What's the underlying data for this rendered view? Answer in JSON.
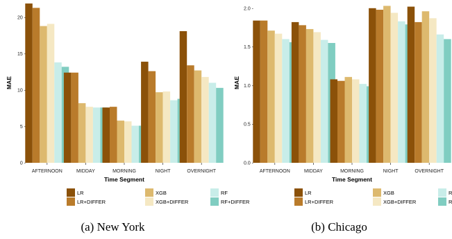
{
  "chart_data": [
    {
      "type": "bar",
      "caption": "(a) New York",
      "xlabel": "Time Segment",
      "ylabel": "MAE",
      "ylim": [
        0,
        22
      ],
      "yticks": [
        0,
        5,
        10,
        15,
        20
      ],
      "ytick_labels": [
        "0 -",
        "5 -",
        "10 -",
        "15 -",
        "20 -"
      ],
      "categories": [
        "AFTERNOON",
        "MIDDAY",
        "MORNING",
        "NIGHT",
        "OVERNIGHT"
      ],
      "legend_position": "bottom",
      "grid": false,
      "series": [
        {
          "name": "LR",
          "color": "#8B5109",
          "values": [
            21.9,
            12.4,
            7.6,
            13.9,
            18.1
          ]
        },
        {
          "name": "LR+DIFFER",
          "color": "#B97B2B",
          "values": [
            21.3,
            12.4,
            7.7,
            12.6,
            13.4
          ]
        },
        {
          "name": "XGB",
          "color": "#DDB96E",
          "values": [
            18.8,
            8.2,
            5.8,
            9.7,
            12.7
          ]
        },
        {
          "name": "XGB+DIFFER",
          "color": "#F5E8C3",
          "values": [
            19.1,
            7.7,
            5.7,
            9.8,
            11.8
          ]
        },
        {
          "name": "RF",
          "color": "#C8EDE9",
          "values": [
            13.8,
            7.6,
            5.1,
            8.6,
            11.0
          ]
        },
        {
          "name": "RF+DIFFER",
          "color": "#80CDC1",
          "values": [
            13.2,
            7.6,
            5.1,
            8.8,
            10.3
          ]
        }
      ]
    },
    {
      "type": "bar",
      "caption": "(b) Chicago",
      "xlabel": "Time Segment",
      "ylabel": "MAE",
      "ylim": [
        0,
        2.07
      ],
      "yticks": [
        0,
        0.5,
        1.0,
        1.5,
        2.0
      ],
      "ytick_labels": [
        "0.0 -",
        "0.5 -",
        "1.0 -",
        "1.5 -",
        "2.0 -"
      ],
      "categories": [
        "AFTERNOON",
        "MIDDAY",
        "MORNING",
        "NIGHT",
        "OVERNIGHT"
      ],
      "legend_position": "bottom",
      "grid": false,
      "series": [
        {
          "name": "LR",
          "color": "#8B5109",
          "values": [
            1.84,
            1.82,
            1.08,
            2.0,
            2.02
          ]
        },
        {
          "name": "LR+DIFFER",
          "color": "#B97B2B",
          "values": [
            1.84,
            1.78,
            1.06,
            1.98,
            1.82
          ]
        },
        {
          "name": "XGB",
          "color": "#DDB96E",
          "values": [
            1.71,
            1.73,
            1.11,
            2.03,
            1.96
          ]
        },
        {
          "name": "XGB+DIFFER",
          "color": "#F5E8C3",
          "values": [
            1.67,
            1.69,
            1.08,
            1.94,
            1.87
          ]
        },
        {
          "name": "RF",
          "color": "#C8EDE9",
          "values": [
            1.6,
            1.59,
            1.02,
            1.83,
            1.66
          ]
        },
        {
          "name": "RF+DIFFER",
          "color": "#80CDC1",
          "values": [
            1.56,
            1.55,
            0.99,
            1.79,
            1.6
          ]
        }
      ]
    }
  ]
}
